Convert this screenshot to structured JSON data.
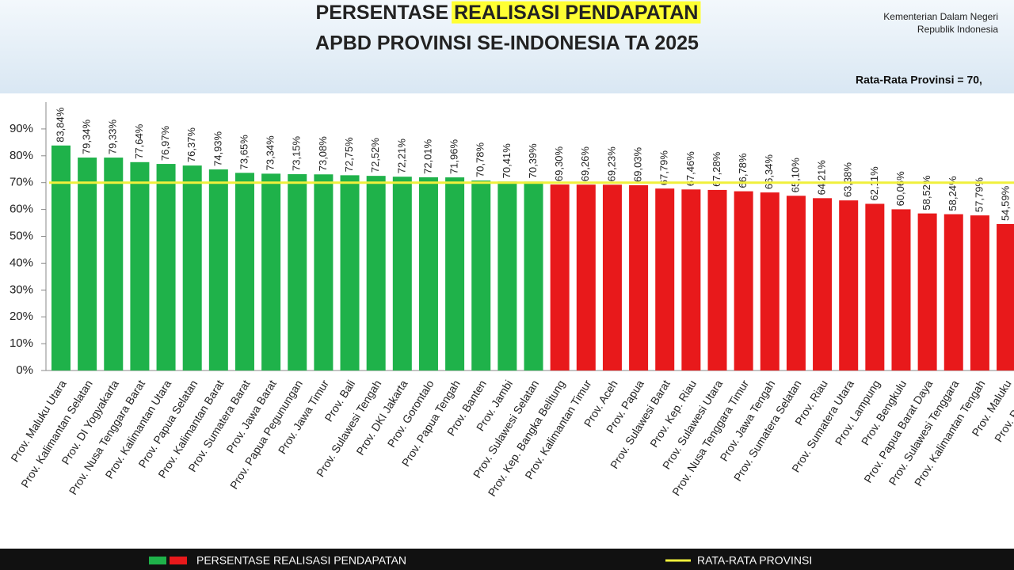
{
  "chart_data": {
    "type": "bar",
    "title": {
      "text": "PERSENTASE",
      "highlight": "REALISASI PENDAPATAN"
    },
    "subtitle": "APBD PROVINSI SE-INDONESIA TA 2025",
    "source": [
      "Kementerian Dalam Negeri",
      "Republik Indonesia"
    ],
    "categories": [
      "Prov. Maluku Utara",
      "Prov. Kalimantan Selatan",
      "Prov. DI Yogyakarta",
      "Prov. Nusa Tenggara Barat",
      "Prov. Kalimantan Utara",
      "Prov. Papua Selatan",
      "Prov. Kalimantan Barat",
      "Prov. Sumatera Barat",
      "Prov. Jawa Barat",
      "Prov. Papua Pegunungan",
      "Prov. Jawa Timur",
      "Prov. Bali",
      "Prov. Sulawesi Tengah",
      "Prov. DKI Jakarta",
      "Prov. Gorontalo",
      "Prov. Papua Tengah",
      "Prov. Banten",
      "Prov. Jambi",
      "Prov. Sulawesi Selatan",
      "Prov. Kep. Bangka Belitung",
      "Prov. Kalimantan Timur",
      "Prov. Aceh",
      "Prov. Papua",
      "Prov. Sulawesi Barat",
      "Prov. Kep. Riau",
      "Prov. Sulawesi Utara",
      "Prov. Nusa Tenggara Timur",
      "Prov. Jawa Tengah",
      "Prov. Sumatera Selatan",
      "Prov. Riau",
      "Prov. Sumatera Utara",
      "Prov. Lampung",
      "Prov. Bengkulu",
      "Prov. Papua Barat Daya",
      "Prov. Sulawesi Tenggara",
      "Prov. Kalimantan Tengah",
      "Prov. Maluku",
      "Prov. Papua B"
    ],
    "series": [
      {
        "name": "PERSENTASE REALISASI PENDAPATAN",
        "colors": [
          "#1fb24a",
          "#e8191b"
        ],
        "values": [
          83.84,
          79.34,
          79.33,
          77.64,
          76.97,
          76.37,
          74.93,
          73.65,
          73.34,
          73.15,
          73.08,
          72.75,
          72.52,
          72.21,
          72.01,
          71.96,
          70.78,
          70.41,
          70.39,
          69.3,
          69.26,
          69.23,
          69.03,
          67.79,
          67.46,
          67.28,
          66.78,
          66.34,
          65.1,
          64.21,
          63.38,
          62.11,
          60.06,
          58.52,
          58.24,
          57.79,
          54.59,
          null
        ],
        "value_labels": [
          "83,84%",
          "79,34%",
          "79,33%",
          "77,64%",
          "76,97%",
          "76,37%",
          "74,93%",
          "73,65%",
          "73,34%",
          "73,15%",
          "73,08%",
          "72,75%",
          "72,52%",
          "72,21%",
          "72,01%",
          "71,96%",
          "70,78%",
          "70,41%",
          "70,39%",
          "69,30%",
          "69,26%",
          "69,23%",
          "69,03%",
          "67,79%",
          "67,46%",
          "67,28%",
          "66,78%",
          "66,34%",
          "65,10%",
          "64,21%",
          "63,38%",
          "62,11%",
          "60,06%",
          "58,52%",
          "58,24%",
          "57,79%",
          "54,59%",
          null
        ]
      }
    ],
    "average_line": {
      "name": "RATA-RATA PROVINSI",
      "label": "Rata-Rata Provinsi = 70,",
      "value": 70,
      "color": "#f0f03c"
    },
    "ylim": [
      0,
      100
    ],
    "yticks": [
      {
        "value": 0,
        "label": "0%"
      },
      {
        "value": 10,
        "label": "10%"
      },
      {
        "value": 20,
        "label": "20%"
      },
      {
        "value": 30,
        "label": "30%"
      },
      {
        "value": 40,
        "label": "40%"
      },
      {
        "value": 50,
        "label": "50%"
      },
      {
        "value": 60,
        "label": "60%"
      },
      {
        "value": 70,
        "label": "70%"
      },
      {
        "value": 80,
        "label": "80%"
      },
      {
        "value": 90,
        "label": "90%"
      }
    ]
  }
}
